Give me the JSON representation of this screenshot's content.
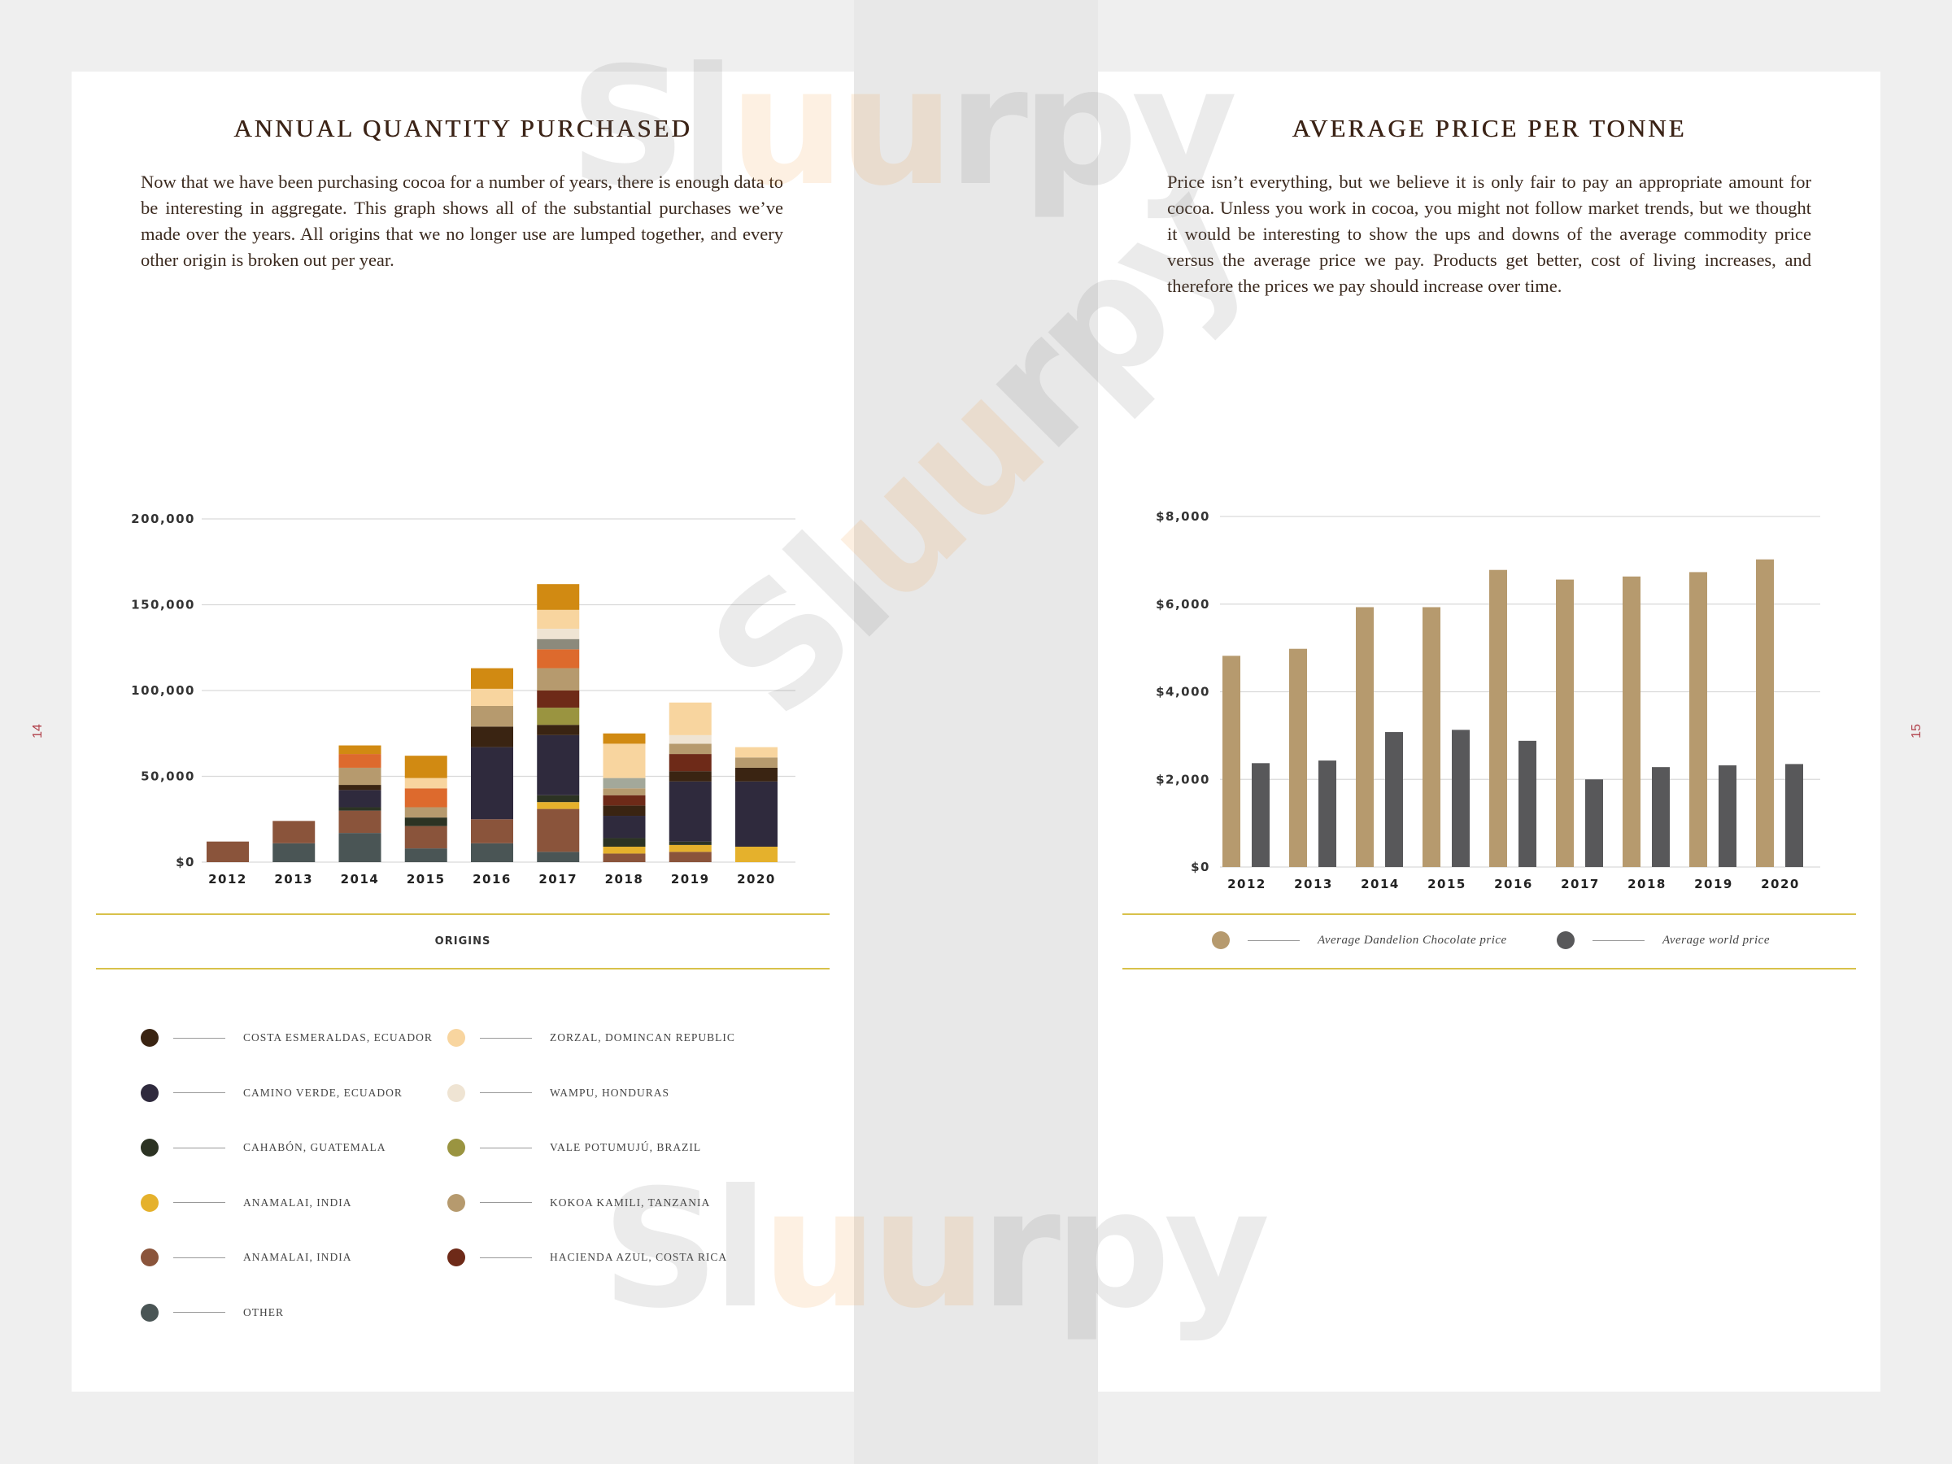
{
  "left_page": {
    "title": "ANNUAL QUANTITY PURCHASED",
    "intro": "Now that we have been purchasing cocoa for a number of years, there is enough data to be interesting in aggregate. This graph shows all of the substantial purchases we’ve made over the years. All origins that we no longer use are lumped together, and every other origin is broken out per year.",
    "page_number": "14",
    "origins_heading": "ORIGINS",
    "legend": [
      {
        "label": "COSTA ESMERALDAS, ECUADOR",
        "color": "#3a2412"
      },
      {
        "label": "CAMINO VERDE, ECUADOR",
        "color": "#2f2a3d"
      },
      {
        "label": "CAHABÓN, GUATEMALA",
        "color": "#2c3323"
      },
      {
        "label": "ANAMALAI, INDIA",
        "color": "#e5b12c"
      },
      {
        "label": "ANAMALAI, INDIA",
        "color": "#8a543b"
      },
      {
        "label": "OTHER",
        "color": "#4a5555"
      },
      {
        "label": "ZORZAL, DOMINCAN REPUBLIC",
        "color": "#f8d59f"
      },
      {
        "label": "WAMPU, HONDURAS",
        "color": "#efe4d3"
      },
      {
        "label": "VALE POTUMUJÚ, BRAZIL",
        "color": "#9a9440"
      },
      {
        "label": "KOKOA KAMILI, TANZANIA",
        "color": "#b69a6e"
      },
      {
        "label": "HACIENDA AZUL, COSTA RICA",
        "color": "#6e2a18"
      }
    ]
  },
  "right_page": {
    "title": "AVERAGE PRICE PER TONNE",
    "intro": "Price isn’t everything, but we believe it is only fair to pay an appropriate amount for cocoa. Unless you work in cocoa, you might not follow market trends, but we thought it would be interesting to show the ups and downs of the average commodity price versus the average price we pay. Products get better, cost of living increases, and therefore the prices we pay should increase over time.",
    "page_number": "15",
    "legend": [
      {
        "label": "Average Dandelion Chocolate price",
        "color": "#b69a6e"
      },
      {
        "label": "Average world price",
        "color": "#58585a"
      }
    ]
  },
  "watermark": {
    "part1": "Sl",
    "part2": "uu",
    "part3": "rpy"
  },
  "chart_data": [
    {
      "type": "bar",
      "stacked": true,
      "categories": [
        "2012",
        "2013",
        "2014",
        "2015",
        "2016",
        "2017",
        "2018",
        "2019",
        "2020"
      ],
      "ylim": [
        0,
        200000
      ],
      "yticks": [
        0,
        50000,
        100000,
        150000,
        200000
      ],
      "ytick_labels": [
        "$0",
        "50,000",
        "100,000",
        "150,000",
        "200,000"
      ],
      "grid": true,
      "series": [
        {
          "name": "OTHER",
          "color": "#4a5555",
          "values": [
            0,
            11000,
            17000,
            8000,
            11000,
            6000,
            0,
            0,
            0
          ]
        },
        {
          "name": "ANAMALAI, INDIA",
          "color": "#8a543b",
          "values": [
            12000,
            13000,
            13000,
            13000,
            14000,
            25000,
            5000,
            6000,
            0
          ]
        },
        {
          "name": "ANAMALAI, INDIA",
          "color": "#e5b12c",
          "values": [
            0,
            0,
            0,
            0,
            0,
            4000,
            4000,
            4000,
            9000
          ]
        },
        {
          "name": "CAHABÓN, GUATEMALA",
          "color": "#2c3323",
          "values": [
            0,
            0,
            2000,
            5000,
            0,
            4000,
            5000,
            2000,
            0
          ]
        },
        {
          "name": "CAMINO VERDE, ECUADOR",
          "color": "#2f2a3d",
          "values": [
            0,
            0,
            10000,
            0,
            42000,
            35000,
            13000,
            35000,
            38000
          ]
        },
        {
          "name": "COSTA ESMERALDAS, ECUADOR",
          "color": "#3a2412",
          "values": [
            0,
            0,
            3000,
            0,
            12000,
            6000,
            6000,
            6000,
            8000
          ]
        },
        {
          "name": "VALE POTUMUJÚ, BRAZIL",
          "color": "#9a9440",
          "values": [
            0,
            0,
            0,
            0,
            0,
            10000,
            0,
            0,
            0
          ]
        },
        {
          "name": "HACIENDA AZUL, COSTA RICA",
          "color": "#6e2a18",
          "values": [
            0,
            0,
            0,
            0,
            0,
            10000,
            6000,
            10000,
            0
          ]
        },
        {
          "name": "KOKOA KAMILI, TANZANIA",
          "color": "#b69a6e",
          "values": [
            0,
            0,
            10000,
            6000,
            12000,
            13000,
            4000,
            6000,
            6000
          ]
        },
        {
          "name": "OTHER",
          "color": "#dd6a2d",
          "values": [
            0,
            0,
            8000,
            11000,
            0,
            11000,
            0,
            0,
            0
          ]
        },
        {
          "name": "OTHER",
          "color": "#8c8a7c",
          "values": [
            0,
            0,
            0,
            0,
            0,
            6000,
            0,
            0,
            0
          ]
        },
        {
          "name": "OTHER",
          "color": "#a3a89a",
          "values": [
            0,
            0,
            0,
            0,
            0,
            0,
            6000,
            0,
            0
          ]
        },
        {
          "name": "WAMPU, HONDURAS",
          "color": "#efe4d3",
          "values": [
            0,
            0,
            0,
            0,
            0,
            6000,
            0,
            5000,
            0
          ]
        },
        {
          "name": "ZORZAL, DOMINCAN REPUBLIC",
          "color": "#f8d59f",
          "values": [
            0,
            0,
            0,
            6000,
            10000,
            11000,
            20000,
            19000,
            6000
          ]
        },
        {
          "name": "OTHER",
          "color": "#d18a12",
          "values": [
            0,
            0,
            5000,
            13000,
            12000,
            15000,
            6000,
            0,
            0
          ]
        }
      ]
    },
    {
      "type": "bar",
      "categories": [
        "2012",
        "2013",
        "2014",
        "2015",
        "2016",
        "2017",
        "2018",
        "2019",
        "2020"
      ],
      "ylim": [
        0,
        8000
      ],
      "yticks": [
        0,
        2000,
        4000,
        6000,
        8000
      ],
      "ytick_labels": [
        "$0",
        "$2,000",
        "$4,000",
        "$6,000",
        "$8,000"
      ],
      "grid": true,
      "series": [
        {
          "name": "Average Dandelion Chocolate price",
          "color": "#b69a6e",
          "values": [
            4820,
            4980,
            5930,
            5930,
            6780,
            6560,
            6630,
            6730,
            7020
          ]
        },
        {
          "name": "Average world price",
          "color": "#58585a",
          "values": [
            2370,
            2430,
            3080,
            3130,
            2880,
            2000,
            2280,
            2320,
            2350
          ]
        }
      ]
    }
  ]
}
